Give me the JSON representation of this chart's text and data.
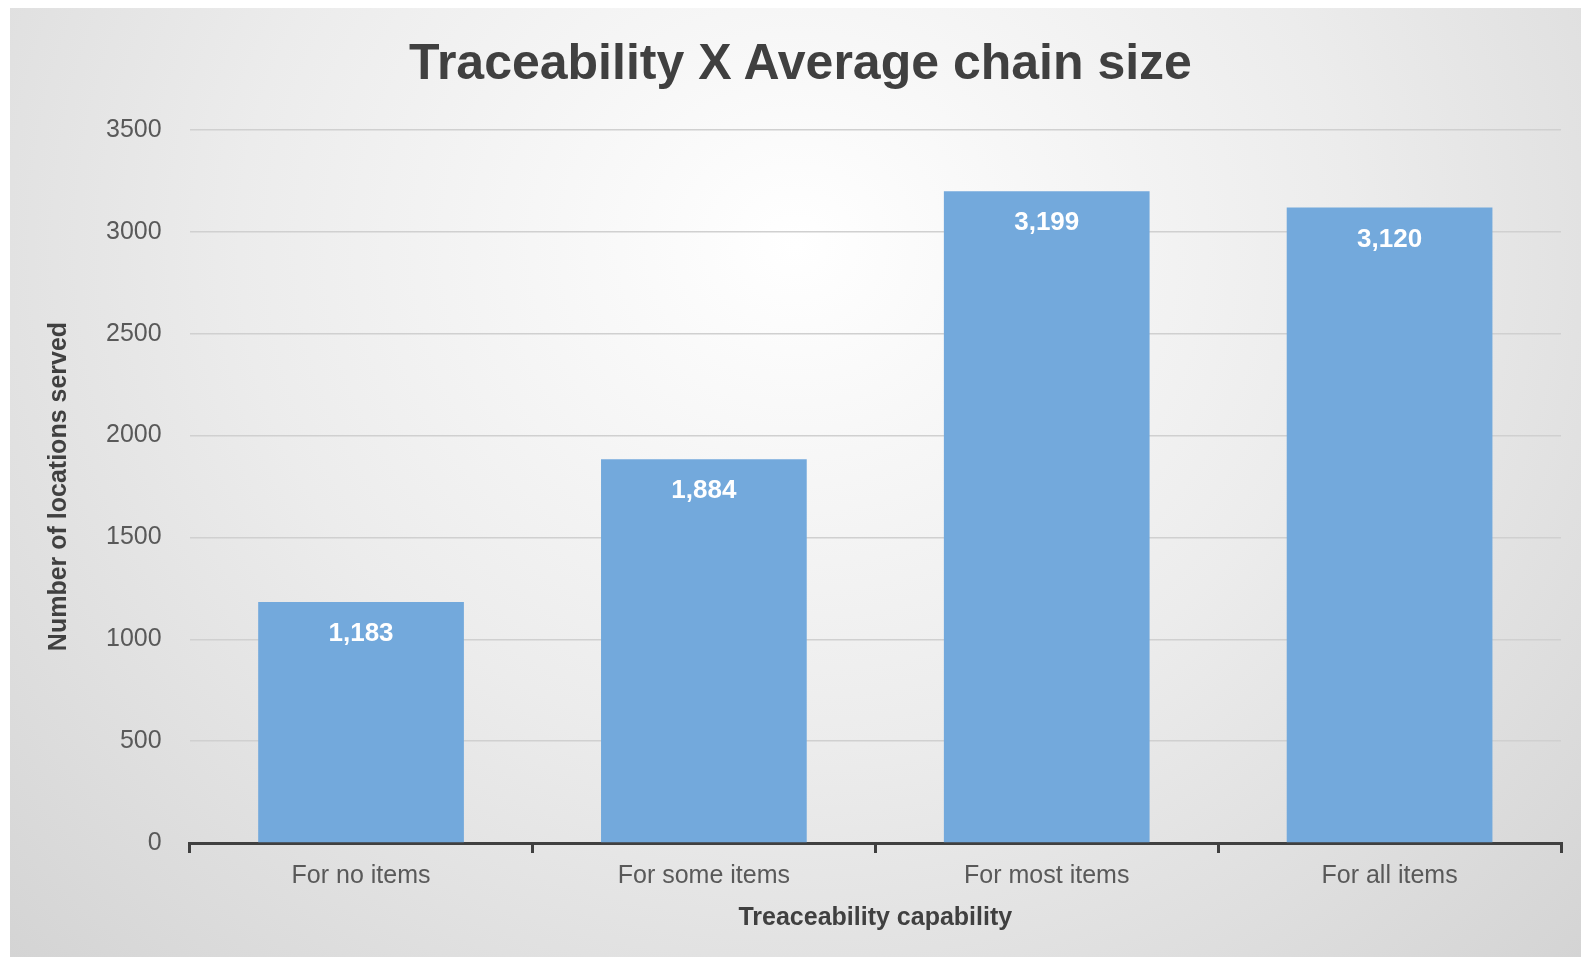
{
  "chart_data": {
    "type": "bar",
    "title": "Traceability X Average chain size",
    "xlabel": "Treaceability capability",
    "ylabel": "Number of locations served",
    "categories": [
      "For no items",
      "For some items",
      "For most items",
      "For all items"
    ],
    "values": [
      1183,
      1884,
      3199,
      3120
    ],
    "value_labels": [
      "1,183",
      "1,884",
      "3,199",
      "3,120"
    ],
    "color": "#73a9dc",
    "ylim": [
      0,
      3500
    ],
    "yticks": [
      0,
      500,
      1000,
      1500,
      2000,
      2500,
      3000,
      3500
    ],
    "grid": "y",
    "legend": false
  }
}
